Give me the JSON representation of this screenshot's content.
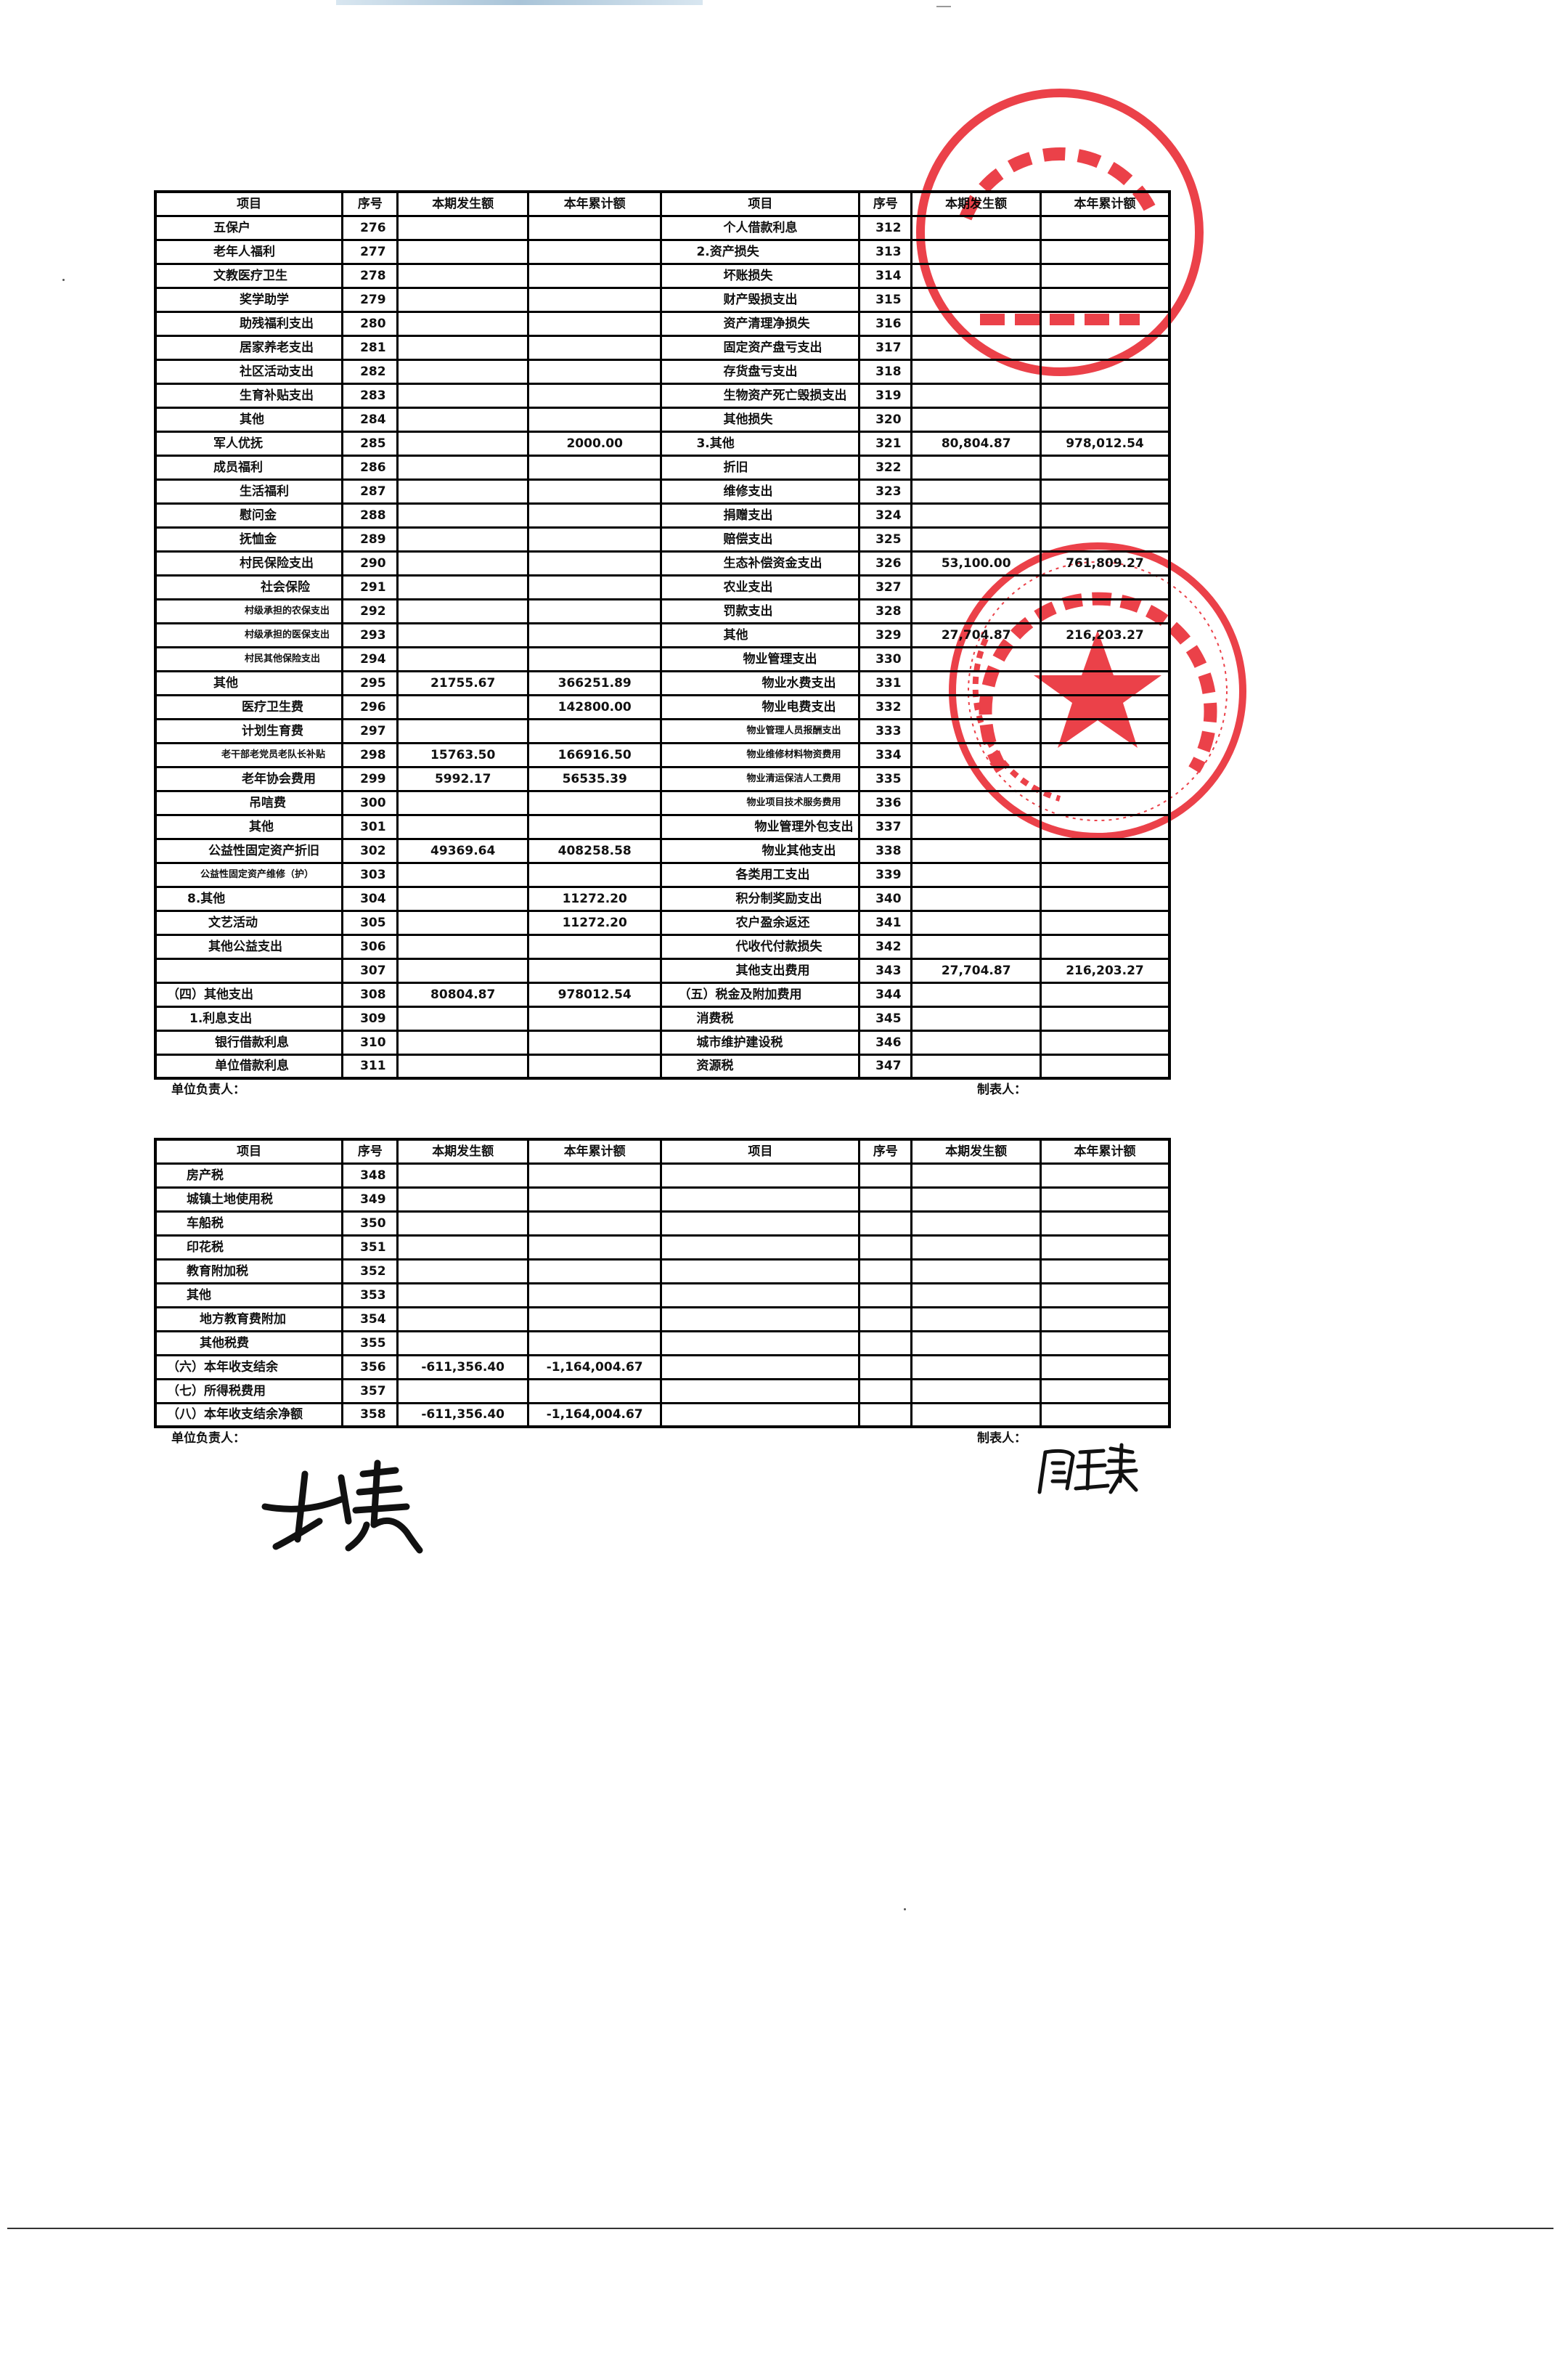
{
  "headers": {
    "item": "项目",
    "seq": "序号",
    "period": "本期发生额",
    "ytd": "本年累计额"
  },
  "table1": {
    "left": [
      {
        "item": "五保户",
        "seq": "276",
        "period": "",
        "ytd": ""
      },
      {
        "item": "老年人福利",
        "seq": "277",
        "period": "",
        "ytd": ""
      },
      {
        "item": "文教医疗卫生",
        "seq": "278",
        "period": "",
        "ytd": ""
      },
      {
        "item": "奖学助学",
        "seq": "279",
        "period": "",
        "ytd": ""
      },
      {
        "item": "助残福利支出",
        "seq": "280",
        "period": "",
        "ytd": ""
      },
      {
        "item": "居家养老支出",
        "seq": "281",
        "period": "",
        "ytd": ""
      },
      {
        "item": "社区活动支出",
        "seq": "282",
        "period": "",
        "ytd": ""
      },
      {
        "item": "生育补贴支出",
        "seq": "283",
        "period": "",
        "ytd": ""
      },
      {
        "item": "其他",
        "seq": "284",
        "period": "",
        "ytd": ""
      },
      {
        "item": "军人优抚",
        "seq": "285",
        "period": "",
        "ytd": "2000.00"
      },
      {
        "item": "成员福利",
        "seq": "286",
        "period": "",
        "ytd": ""
      },
      {
        "item": "生活福利",
        "seq": "287",
        "period": "",
        "ytd": ""
      },
      {
        "item": "慰问金",
        "seq": "288",
        "period": "",
        "ytd": ""
      },
      {
        "item": "抚恤金",
        "seq": "289",
        "period": "",
        "ytd": ""
      },
      {
        "item": "村民保险支出",
        "seq": "290",
        "period": "",
        "ytd": ""
      },
      {
        "item": "社会保险",
        "seq": "291",
        "period": "",
        "ytd": ""
      },
      {
        "item": "村级承担的农保支出",
        "seq": "292",
        "period": "",
        "ytd": ""
      },
      {
        "item": "村级承担的医保支出",
        "seq": "293",
        "period": "",
        "ytd": ""
      },
      {
        "item": "村民其他保险支出",
        "seq": "294",
        "period": "",
        "ytd": ""
      },
      {
        "item": "其他",
        "seq": "295",
        "period": "21755.67",
        "ytd": "366251.89"
      },
      {
        "item": "医疗卫生费",
        "seq": "296",
        "period": "",
        "ytd": "142800.00"
      },
      {
        "item": "计划生育费",
        "seq": "297",
        "period": "",
        "ytd": ""
      },
      {
        "item": "老干部老党员老队长补贴",
        "seq": "298",
        "period": "15763.50",
        "ytd": "166916.50"
      },
      {
        "item": "老年协会费用",
        "seq": "299",
        "period": "5992.17",
        "ytd": "56535.39"
      },
      {
        "item": "吊唁费",
        "seq": "300",
        "period": "",
        "ytd": ""
      },
      {
        "item": "其他",
        "seq": "301",
        "period": "",
        "ytd": ""
      },
      {
        "item": "公益性固定资产折旧",
        "seq": "302",
        "period": "49369.64",
        "ytd": "408258.58"
      },
      {
        "item": "公益性固定资产维修（护）",
        "seq": "303",
        "period": "",
        "ytd": ""
      },
      {
        "item": "8.其他",
        "seq": "304",
        "period": "",
        "ytd": "11272.20"
      },
      {
        "item": "文艺活动",
        "seq": "305",
        "period": "",
        "ytd": "11272.20"
      },
      {
        "item": "其他公益支出",
        "seq": "306",
        "period": "",
        "ytd": ""
      },
      {
        "item": "",
        "seq": "307",
        "period": "",
        "ytd": ""
      },
      {
        "item": "（四）其他支出",
        "seq": "308",
        "period": "80804.87",
        "ytd": "978012.54"
      },
      {
        "item": "1.利息支出",
        "seq": "309",
        "period": "",
        "ytd": ""
      },
      {
        "item": "银行借款利息",
        "seq": "310",
        "period": "",
        "ytd": ""
      },
      {
        "item": "单位借款利息",
        "seq": "311",
        "period": "",
        "ytd": ""
      }
    ],
    "right": [
      {
        "item": "个人借款利息",
        "seq": "312",
        "period": "",
        "ytd": ""
      },
      {
        "item": "2.资产损失",
        "seq": "313",
        "period": "",
        "ytd": ""
      },
      {
        "item": "坏账损失",
        "seq": "314",
        "period": "",
        "ytd": ""
      },
      {
        "item": "财产毁损支出",
        "seq": "315",
        "period": "",
        "ytd": ""
      },
      {
        "item": "资产清理净损失",
        "seq": "316",
        "period": "",
        "ytd": ""
      },
      {
        "item": "固定资产盘亏支出",
        "seq": "317",
        "period": "",
        "ytd": ""
      },
      {
        "item": "存货盘亏支出",
        "seq": "318",
        "period": "",
        "ytd": ""
      },
      {
        "item": "生物资产死亡毁损支出",
        "seq": "319",
        "period": "",
        "ytd": ""
      },
      {
        "item": "其他损失",
        "seq": "320",
        "period": "",
        "ytd": ""
      },
      {
        "item": "3.其他",
        "seq": "321",
        "period": "80,804.87",
        "ytd": "978,012.54"
      },
      {
        "item": "折旧",
        "seq": "322",
        "period": "",
        "ytd": ""
      },
      {
        "item": "维修支出",
        "seq": "323",
        "period": "",
        "ytd": ""
      },
      {
        "item": "捐赠支出",
        "seq": "324",
        "period": "",
        "ytd": ""
      },
      {
        "item": "赔偿支出",
        "seq": "325",
        "period": "",
        "ytd": ""
      },
      {
        "item": "生态补偿资金支出",
        "seq": "326",
        "period": "53,100.00",
        "ytd": "761,809.27"
      },
      {
        "item": "农业支出",
        "seq": "327",
        "period": "",
        "ytd": ""
      },
      {
        "item": "罚款支出",
        "seq": "328",
        "period": "",
        "ytd": ""
      },
      {
        "item": "其他",
        "seq": "329",
        "period": "27,704.87",
        "ytd": "216,203.27"
      },
      {
        "item": "物业管理支出",
        "seq": "330",
        "period": "",
        "ytd": ""
      },
      {
        "item": "物业水费支出",
        "seq": "331",
        "period": "",
        "ytd": ""
      },
      {
        "item": "物业电费支出",
        "seq": "332",
        "period": "",
        "ytd": ""
      },
      {
        "item": "物业管理人员报酬支出",
        "seq": "333",
        "period": "",
        "ytd": ""
      },
      {
        "item": "物业维修材料物资费用",
        "seq": "334",
        "period": "",
        "ytd": ""
      },
      {
        "item": "物业清运保洁人工费用",
        "seq": "335",
        "period": "",
        "ytd": ""
      },
      {
        "item": "物业项目技术服务费用",
        "seq": "336",
        "period": "",
        "ytd": ""
      },
      {
        "item": "物业管理外包支出",
        "seq": "337",
        "period": "",
        "ytd": ""
      },
      {
        "item": "物业其他支出",
        "seq": "338",
        "period": "",
        "ytd": ""
      },
      {
        "item": "各类用工支出",
        "seq": "339",
        "period": "",
        "ytd": ""
      },
      {
        "item": "积分制奖励支出",
        "seq": "340",
        "period": "",
        "ytd": ""
      },
      {
        "item": "农户盈余返还",
        "seq": "341",
        "period": "",
        "ytd": ""
      },
      {
        "item": "代收代付款损失",
        "seq": "342",
        "period": "",
        "ytd": ""
      },
      {
        "item": "其他支出费用",
        "seq": "343",
        "period": "27,704.87",
        "ytd": "216,203.27"
      },
      {
        "item": "（五）税金及附加费用",
        "seq": "344",
        "period": "",
        "ytd": ""
      },
      {
        "item": "消费税",
        "seq": "345",
        "period": "",
        "ytd": ""
      },
      {
        "item": "城市维护建设税",
        "seq": "346",
        "period": "",
        "ytd": ""
      },
      {
        "item": "资源税",
        "seq": "347",
        "period": "",
        "ytd": ""
      }
    ]
  },
  "table2": {
    "left": [
      {
        "item": "房产税",
        "seq": "348",
        "period": "",
        "ytd": ""
      },
      {
        "item": "城镇土地使用税",
        "seq": "349",
        "period": "",
        "ytd": ""
      },
      {
        "item": "车船税",
        "seq": "350",
        "period": "",
        "ytd": ""
      },
      {
        "item": "印花税",
        "seq": "351",
        "period": "",
        "ytd": ""
      },
      {
        "item": "教育附加税",
        "seq": "352",
        "period": "",
        "ytd": ""
      },
      {
        "item": "其他",
        "seq": "353",
        "period": "",
        "ytd": ""
      },
      {
        "item": "地方教育费附加",
        "seq": "354",
        "period": "",
        "ytd": ""
      },
      {
        "item": "其他税费",
        "seq": "355",
        "period": "",
        "ytd": ""
      },
      {
        "item": "（六）本年收支结余",
        "seq": "356",
        "period": "-611,356.40",
        "ytd": "-1,164,004.67"
      },
      {
        "item": "（七）所得税费用",
        "seq": "357",
        "period": "",
        "ytd": ""
      },
      {
        "item": "（八）本年收支结余净额",
        "seq": "358",
        "period": "-611,356.40",
        "ytd": "-1,164,004.67"
      }
    ]
  },
  "footer": {
    "unit_head": "单位负责人：",
    "preparer": "制表人："
  },
  "stamps": {
    "villagers_committee": {
      "arc_text": "市张浦镇大市村",
      "center_text": "村民委员会"
    },
    "supervision_committee": {
      "arc_text": "昆山市张浦镇大市村村务监督委员会",
      "code": "3205830000720"
    },
    "color": "#e8202a"
  }
}
